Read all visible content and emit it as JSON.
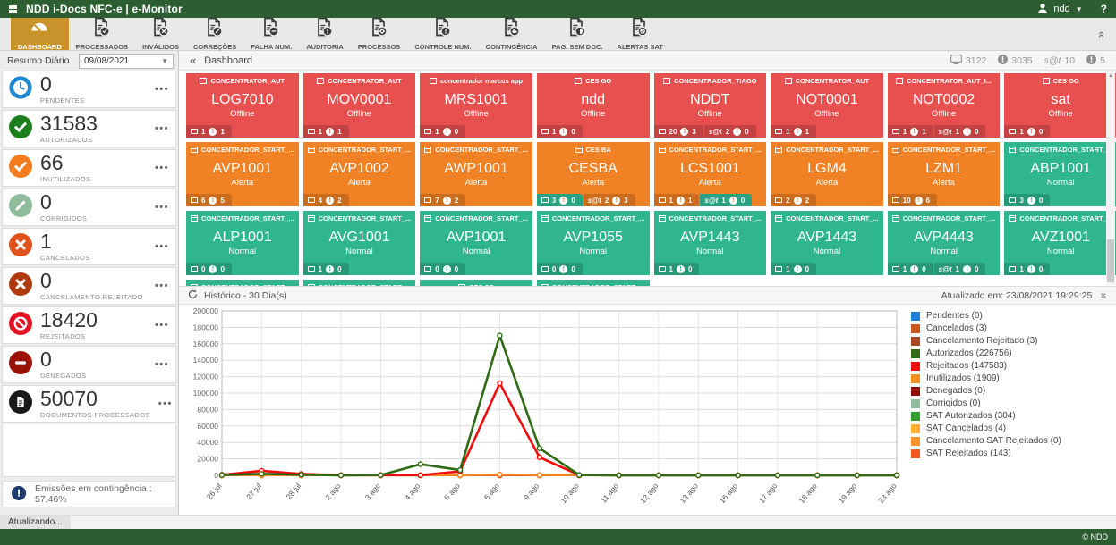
{
  "app": {
    "title": "NDD i-Docs NFC-e | e-Monitor",
    "user": "ndd",
    "help": "?",
    "status_bar": "Atualizando...",
    "footer_copyright": "© NDD",
    "brand_green": "#2d5e32",
    "active_gold": "#c8932b"
  },
  "toolbar": {
    "items": [
      {
        "label": "DASHBOARD",
        "icon": "gauge",
        "active": true
      },
      {
        "label": "PROCESSADOS",
        "icon": "check",
        "active": false
      },
      {
        "label": "INVÁLIDOS",
        "icon": "x",
        "active": false
      },
      {
        "label": "CORREÇÕES",
        "icon": "pencil",
        "active": false
      },
      {
        "label": "FALHA NUM.",
        "icon": "minus",
        "active": false
      },
      {
        "label": "AUDITORIA",
        "icon": "excl",
        "active": false
      },
      {
        "label": "PROCESSOS",
        "icon": "gear",
        "active": false
      },
      {
        "label": "CONTROLE NUM.",
        "icon": "excl",
        "active": false
      },
      {
        "label": "CONTINGÊNCIA",
        "icon": "cloud",
        "active": false
      },
      {
        "label": "PAG. SEM DOC.",
        "icon": "half",
        "active": false
      },
      {
        "label": "ALERTAS SAT",
        "icon": "slash",
        "active": false
      }
    ]
  },
  "sidebar": {
    "header": "Resumo Diário",
    "date": "09/08/2021",
    "stats": [
      {
        "value": "0",
        "label": "PENDENTES",
        "icon": "clock",
        "color": "#1e88d2"
      },
      {
        "value": "31583",
        "label": "AUTORIZADOS",
        "icon": "check",
        "color": "#1e7e1e"
      },
      {
        "value": "66",
        "label": "INUTILIZADOS",
        "icon": "check",
        "color": "#f57c1f"
      },
      {
        "value": "0",
        "label": "CORRIGIDOS",
        "icon": "pencil",
        "color": "#8fbc9b"
      },
      {
        "value": "1",
        "label": "CANCELADOS",
        "icon": "x",
        "color": "#e0531e"
      },
      {
        "value": "0",
        "label": "CANCELAMENTO REJEITADO",
        "icon": "x",
        "color": "#b03a10"
      },
      {
        "value": "18420",
        "label": "REJEITADOS",
        "icon": "no",
        "color": "#e81123"
      },
      {
        "value": "0",
        "label": "DENEGADOS",
        "icon": "minus",
        "color": "#991107"
      },
      {
        "value": "50070",
        "label": "DOCUMENTOS PROCESSADOS",
        "icon": "document",
        "color": "#1a1a1a"
      }
    ],
    "contingency": {
      "label": "Emissões em contingência : 57,46%",
      "icon_color": "#1f3a6e"
    }
  },
  "main": {
    "breadcrumb": "Dashboard",
    "counters": [
      {
        "icon": "monitor",
        "value": "3122"
      },
      {
        "icon": "alert",
        "value": "3035"
      },
      {
        "icon": "sat",
        "label": "s@t",
        "value": "10"
      },
      {
        "icon": "alert",
        "value": "5"
      }
    ],
    "tile_colors": {
      "offline": "#e8504f",
      "alert": "#f08124",
      "normal": "#2fb68e"
    },
    "tiles": [
      {
        "group": "CONCENTRATOR_AUT",
        "name": "LOG7010",
        "status": "Offline",
        "state": "offline",
        "badges": [
          {
            "icon": "monitor",
            "count": 1,
            "alert": 1
          }
        ]
      },
      {
        "group": "CONCENTRATOR_AUT",
        "name": "MOV0001",
        "status": "Offline",
        "state": "offline",
        "badges": [
          {
            "icon": "monitor",
            "count": 1,
            "alert": 1
          }
        ]
      },
      {
        "group": "concentrador marcus app",
        "name": "MRS1001",
        "status": "Offline",
        "state": "offline",
        "badges": [
          {
            "icon": "monitor",
            "count": 1,
            "alert": 0
          }
        ]
      },
      {
        "group": "CES GO",
        "name": "ndd",
        "status": "Offline",
        "state": "offline",
        "badges": [
          {
            "icon": "monitor",
            "count": 1,
            "alert": 0
          }
        ]
      },
      {
        "group": "CONCENTRADOR_TIAGO",
        "name": "NDDT",
        "status": "Offline",
        "state": "offline",
        "badges": [
          {
            "icon": "monitor",
            "count": 20,
            "alert": 3
          },
          {
            "icon": "sat",
            "count": 2,
            "alert": 0
          }
        ]
      },
      {
        "group": "CONCENTRATOR_AUT",
        "name": "NOT0001",
        "status": "Offline",
        "state": "offline",
        "badges": [
          {
            "icon": "monitor",
            "count": 1,
            "alert": 1
          }
        ]
      },
      {
        "group": "CONCENTRATOR_AUT_I...",
        "name": "NOT0002",
        "status": "Offline",
        "state": "offline",
        "badges": [
          {
            "icon": "monitor",
            "count": 1,
            "alert": 1
          },
          {
            "icon": "sat",
            "count": 1,
            "alert": 0
          }
        ]
      },
      {
        "group": "CES GO",
        "name": "sat",
        "status": "Offline",
        "state": "offline",
        "badges": [
          {
            "icon": "monitor",
            "count": 1,
            "alert": 0
          }
        ]
      },
      {
        "group": "CONCENTRADOR_START_...",
        "name": "AVP1001",
        "status": "Alerta",
        "state": "alert",
        "badges": [
          {
            "icon": "monitor",
            "count": 6,
            "alert": 5
          }
        ]
      },
      {
        "group": "CONCENTRADOR_START_...",
        "name": "AVP1002",
        "status": "Alerta",
        "state": "alert",
        "badges": [
          {
            "icon": "monitor",
            "count": 4,
            "alert": 2
          }
        ]
      },
      {
        "group": "CONCENTRADOR_START_...",
        "name": "AWP1001",
        "status": "Alerta",
        "state": "alert",
        "badges": [
          {
            "icon": "monitor",
            "count": 7,
            "alert": 2
          }
        ]
      },
      {
        "group": "CES BA",
        "name": "CESBA",
        "status": "Alerta",
        "state": "alert",
        "badges": [
          {
            "icon": "monitor",
            "count": 3,
            "alert": 0,
            "green": true
          },
          {
            "icon": "sat",
            "count": 2,
            "alert": 3
          }
        ]
      },
      {
        "group": "CONCENTRADOR_START_...",
        "name": "LCS1001",
        "status": "Alerta",
        "state": "alert",
        "badges": [
          {
            "icon": "monitor",
            "count": 1,
            "alert": 1
          },
          {
            "icon": "sat",
            "count": 1,
            "alert": 0,
            "green": true
          }
        ]
      },
      {
        "group": "CONCENTRADOR_START_...",
        "name": "LGM4",
        "status": "Alerta",
        "state": "alert",
        "badges": [
          {
            "icon": "monitor",
            "count": 2,
            "alert": 2
          }
        ]
      },
      {
        "group": "CONCENTRADOR_START_...",
        "name": "LZM1",
        "status": "Alerta",
        "state": "alert",
        "badges": [
          {
            "icon": "monitor",
            "count": 10,
            "alert": 6
          }
        ]
      },
      {
        "group": "CONCENTRADOR_START_...",
        "name": "ABP1001",
        "status": "Normal",
        "state": "normal",
        "badges": [
          {
            "icon": "monitor",
            "count": 3,
            "alert": 0
          }
        ]
      },
      {
        "group": "CONCENTRADOR_START_...",
        "name": "ALP1001",
        "status": "Normal",
        "state": "normal",
        "badges": [
          {
            "icon": "monitor",
            "count": 0,
            "alert": 0
          }
        ]
      },
      {
        "group": "CONCENTRADOR_START_...",
        "name": "AVG1001",
        "status": "Normal",
        "state": "normal",
        "badges": [
          {
            "icon": "monitor",
            "count": 1,
            "alert": 0
          }
        ]
      },
      {
        "group": "CONCENTRADOR_START_...",
        "name": "AVP1001",
        "status": "Normal",
        "state": "normal",
        "badges": [
          {
            "icon": "monitor",
            "count": 0,
            "alert": 0
          }
        ]
      },
      {
        "group": "CONCENTRADOR_START_...",
        "name": "AVP1055",
        "status": "Normal",
        "state": "normal",
        "badges": [
          {
            "icon": "monitor",
            "count": 0,
            "alert": 0
          }
        ]
      },
      {
        "group": "CONCENTRADOR_START_...",
        "name": "AVP1443",
        "status": "Normal",
        "state": "normal",
        "badges": [
          {
            "icon": "monitor",
            "count": 1,
            "alert": 0
          }
        ]
      },
      {
        "group": "CONCENTRADOR_START_...",
        "name": "AVP1443",
        "status": "Normal",
        "state": "normal",
        "badges": [
          {
            "icon": "monitor",
            "count": 1,
            "alert": 0
          }
        ]
      },
      {
        "group": "CONCENTRADOR_START_...",
        "name": "AVP4443",
        "status": "Normal",
        "state": "normal",
        "badges": [
          {
            "icon": "monitor",
            "count": 1,
            "alert": 0
          },
          {
            "icon": "sat",
            "count": 1,
            "alert": 0
          }
        ]
      },
      {
        "group": "CONCENTRADOR_START_...",
        "name": "AVZ1001",
        "status": "Normal",
        "state": "normal",
        "badges": [
          {
            "icon": "monitor",
            "count": 1,
            "alert": 0
          }
        ]
      }
    ],
    "partial_tiles": [
      {
        "group": "CONCENTRADOR_START_...",
        "state": "normal"
      },
      {
        "group": "CONCENTRADOR_START_...",
        "state": "normal"
      },
      {
        "group": "CES SC",
        "state": "normal"
      },
      {
        "group": "CONCENTRADOR_START_...",
        "state": "normal"
      }
    ]
  },
  "chart": {
    "title": "Histórico - 30 Dia(s)",
    "updated": "Atualizado em: 23/08/2021 19:29:25"
  },
  "chart_data": {
    "type": "line",
    "title": "Histórico - 30 Dia(s)",
    "x": [
      "26 jul",
      "27 jul",
      "28 jul",
      "2 ago",
      "3 ago",
      "4 ago",
      "5 ago",
      "6 ago",
      "9 ago",
      "10 ago",
      "11 ago",
      "12 ago",
      "13 ago",
      "16 ago",
      "17 ago",
      "18 ago",
      "19 ago",
      "23 ago"
    ],
    "ylim": [
      0,
      200000
    ],
    "ytick": 20000,
    "grid": true,
    "legend_position": "right",
    "series": [
      {
        "name": "Pendentes (0)",
        "color": "#1d7fd6",
        "values": [
          0,
          0,
          0,
          0,
          0,
          0,
          0,
          0,
          0,
          0,
          0,
          0,
          0,
          0,
          0,
          0,
          0,
          0
        ]
      },
      {
        "name": "Cancelados (3)",
        "color": "#d1541f",
        "values": [
          0,
          0,
          0,
          0,
          0,
          0,
          1,
          1,
          1,
          0,
          0,
          0,
          0,
          0,
          0,
          0,
          0,
          0
        ]
      },
      {
        "name": "Cancelamento Rejeitado (3)",
        "color": "#a84720",
        "values": [
          0,
          0,
          0,
          0,
          0,
          0,
          1,
          1,
          1,
          0,
          0,
          0,
          0,
          0,
          0,
          0,
          0,
          0
        ]
      },
      {
        "name": "Autorizados (226756)",
        "color": "#2e6b12",
        "values": [
          400,
          1800,
          700,
          100,
          300,
          13500,
          6500,
          170000,
          33000,
          400,
          0,
          0,
          0,
          0,
          0,
          0,
          0,
          0
        ]
      },
      {
        "name": "Rejeitados (147583)",
        "color": "#f30b0b",
        "values": [
          700,
          5500,
          1700,
          200,
          150,
          250,
          4800,
          112000,
          22000,
          280,
          0,
          0,
          0,
          0,
          0,
          0,
          0,
          0
        ]
      },
      {
        "name": "Inutilizados (1909)",
        "color": "#f68b1f",
        "values": [
          20,
          40,
          30,
          0,
          0,
          10,
          250,
          1100,
          420,
          39,
          0,
          0,
          0,
          0,
          0,
          0,
          0,
          0
        ]
      },
      {
        "name": "Denegados (0)",
        "color": "#8e1004",
        "values": [
          0,
          0,
          0,
          0,
          0,
          0,
          0,
          0,
          0,
          0,
          0,
          0,
          0,
          0,
          0,
          0,
          0,
          0
        ]
      },
      {
        "name": "Corrigidos (0)",
        "color": "#8fbc9b",
        "values": [
          0,
          0,
          0,
          0,
          0,
          0,
          0,
          0,
          0,
          0,
          0,
          0,
          0,
          0,
          0,
          0,
          0,
          0
        ]
      },
      {
        "name": "SAT Autorizados (304)",
        "color": "#2f9e2b",
        "values": [
          0,
          0,
          0,
          0,
          0,
          30,
          40,
          150,
          80,
          4,
          0,
          0,
          0,
          0,
          0,
          0,
          0,
          0
        ]
      },
      {
        "name": "SAT Cancelados (4)",
        "color": "#fbb034",
        "values": [
          0,
          0,
          0,
          0,
          0,
          0,
          1,
          2,
          1,
          0,
          0,
          0,
          0,
          0,
          0,
          0,
          0,
          0
        ]
      },
      {
        "name": "Cancelamento SAT Rejeitados (0)",
        "color": "#fd9226",
        "values": [
          0,
          0,
          0,
          0,
          0,
          0,
          0,
          0,
          0,
          0,
          0,
          0,
          0,
          0,
          0,
          0,
          0,
          0
        ]
      },
      {
        "name": "SAT Rejeitados (143)",
        "color": "#f3561f",
        "values": [
          0,
          0,
          0,
          0,
          0,
          10,
          20,
          70,
          40,
          3,
          0,
          0,
          0,
          0,
          0,
          0,
          0,
          0
        ]
      }
    ]
  }
}
